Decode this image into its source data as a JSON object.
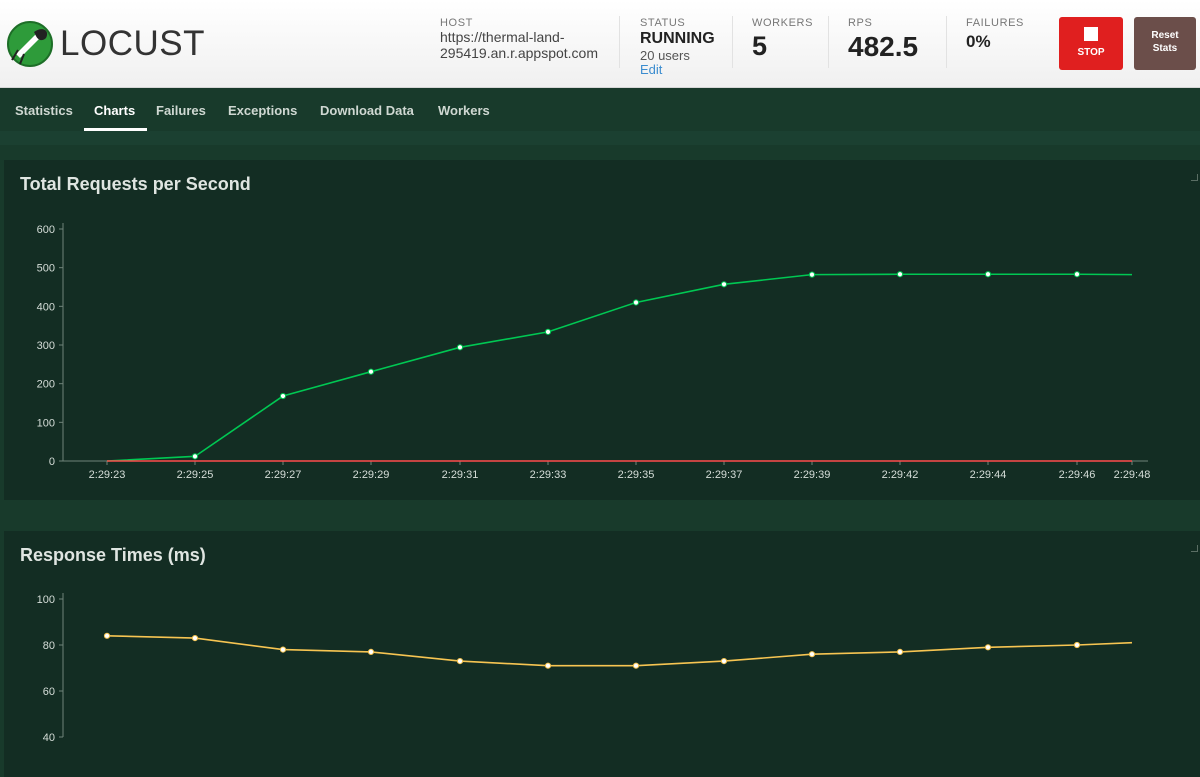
{
  "header": {
    "logo_text": "LOCUST",
    "host_label": "HOST",
    "host_line1": "https://thermal-land-",
    "host_line2": "295419.an.r.appspot.com",
    "status_label": "STATUS",
    "status_value": "RUNNING",
    "users": "20 users",
    "edit": "Edit",
    "workers_label": "WORKERS",
    "workers_value": "5",
    "rps_label": "RPS",
    "rps_value": "482.5",
    "failures_label": "FAILURES",
    "failures_value": "0%",
    "stop_label": "STOP",
    "reset_line1": "Reset",
    "reset_line2": "Stats"
  },
  "nav": {
    "tabs": [
      {
        "label": "Statistics"
      },
      {
        "label": "Charts"
      },
      {
        "label": "Failures"
      },
      {
        "label": "Exceptions"
      },
      {
        "label": "Download Data"
      },
      {
        "label": "Workers"
      }
    ],
    "active": "Charts"
  },
  "colors": {
    "rps_line": "#00c853",
    "failures_line": "#ff4d4d",
    "response_line": "#f7c552",
    "stop": "#e01f1f",
    "reset": "#6b4e4a"
  },
  "chart_data": [
    {
      "type": "line",
      "title": "Total Requests per Second",
      "x": [
        "2:29:23",
        "2:29:25",
        "2:29:27",
        "2:29:29",
        "2:29:31",
        "2:29:33",
        "2:29:35",
        "2:29:37",
        "2:29:39",
        "2:29:42",
        "2:29:44",
        "2:29:46",
        "2:29:48"
      ],
      "yticks": [
        0,
        100,
        200,
        300,
        400,
        500,
        600
      ],
      "ylim": [
        0,
        600
      ],
      "series": [
        {
          "color": "#00c853",
          "values": [
            0,
            12,
            168,
            231,
            294,
            334,
            410,
            457,
            482,
            483,
            483,
            483,
            482
          ]
        },
        {
          "color": "#ff4d4d",
          "values": [
            0,
            0,
            0,
            0,
            0,
            0,
            0,
            0,
            0,
            0,
            0,
            0,
            0
          ]
        }
      ]
    },
    {
      "type": "line",
      "title": "Response Times (ms)",
      "x": [
        "2:29:23",
        "2:29:25",
        "2:29:27",
        "2:29:29",
        "2:29:31",
        "2:29:33",
        "2:29:35",
        "2:29:37",
        "2:29:39",
        "2:29:42",
        "2:29:44",
        "2:29:46",
        "2:29:48"
      ],
      "yticks": [
        40,
        60,
        80,
        100
      ],
      "ylim": [
        40,
        100
      ],
      "series": [
        {
          "color": "#f7c552",
          "values": [
            84,
            83,
            78,
            77,
            73,
            71,
            71,
            73,
            76,
            77,
            79,
            80,
            81
          ]
        }
      ]
    }
  ]
}
